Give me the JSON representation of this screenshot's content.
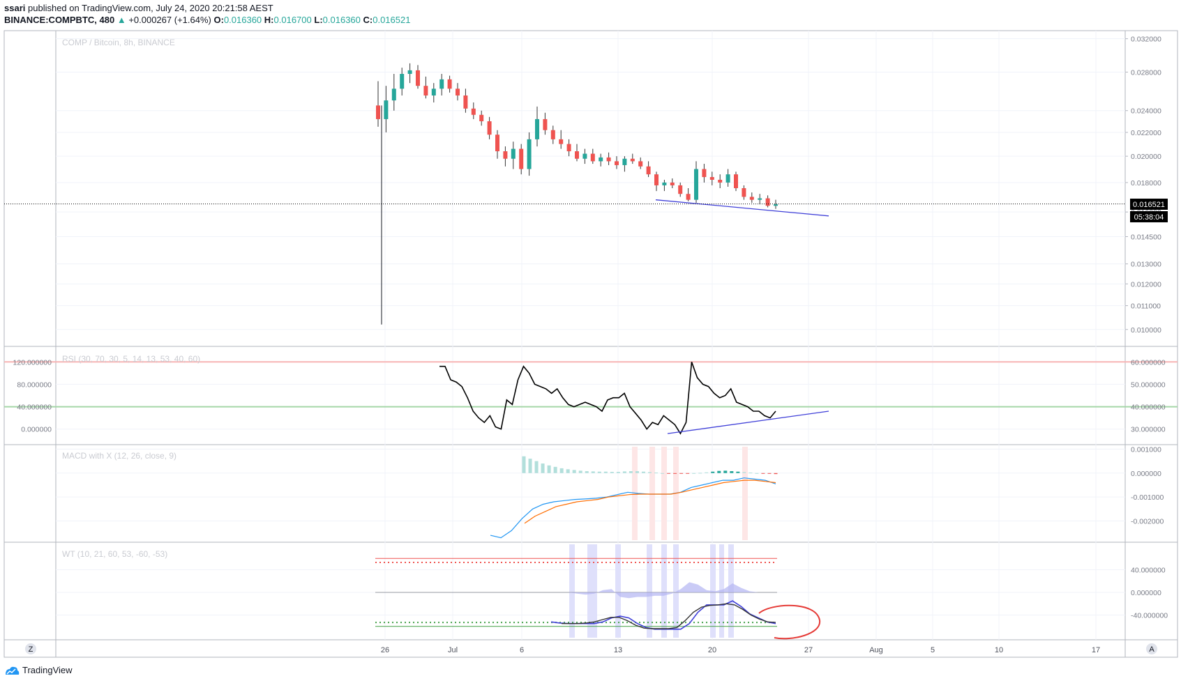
{
  "header": {
    "author": "ssari",
    "published_text": "published on TradingView.com, July 24, 2020 20:21:58 AEST",
    "symbol": "BINANCE:COMPBTC, 480",
    "change": "0.016521",
    "change_delta": "+0.000267 (+1.64%)",
    "o_label": "O:",
    "o_value": "0.016360",
    "h_label": "H:",
    "h_value": "0.016700",
    "l_label": "L:",
    "l_value": "0.016360",
    "c_label": "C:",
    "c_value": "0.016521"
  },
  "footer": {
    "brand": "TradingView"
  },
  "colors": {
    "up": "#26a69a",
    "down": "#ef5350",
    "trend": "#3f3fd8",
    "macd": "#2196f3",
    "signal": "#ff6d00",
    "rsi": "#000000"
  },
  "chart_data": [
    {
      "type": "candlestick",
      "title": "COMP / Bitcoin, 8h, BINANCE",
      "y_ticks": [
        "0.032000",
        "0.028000",
        "0.024000",
        "0.022000",
        "0.020000",
        "0.018000",
        "0.016000",
        "0.014500",
        "0.013000",
        "0.012000",
        "0.011000",
        "0.010000"
      ],
      "last_price": "0.016521",
      "countdown": "05:38:04",
      "scale": "log",
      "candles": [
        [
          0.0245,
          0.027,
          0.0225,
          0.0232
        ],
        [
          0.0232,
          0.0265,
          0.022,
          0.025
        ],
        [
          0.025,
          0.0278,
          0.024,
          0.0262
        ],
        [
          0.0262,
          0.0285,
          0.0255,
          0.0278
        ],
        [
          0.0278,
          0.029,
          0.0268,
          0.0282
        ],
        [
          0.0282,
          0.0288,
          0.0262,
          0.0265
        ],
        [
          0.0265,
          0.0275,
          0.0252,
          0.0255
        ],
        [
          0.0255,
          0.0268,
          0.0248,
          0.0262
        ],
        [
          0.0262,
          0.0278,
          0.0255,
          0.0272
        ],
        [
          0.0272,
          0.0276,
          0.0258,
          0.0262
        ],
        [
          0.0262,
          0.0268,
          0.025,
          0.0255
        ],
        [
          0.0255,
          0.0262,
          0.0238,
          0.0242
        ],
        [
          0.0242,
          0.0248,
          0.0232,
          0.0236
        ],
        [
          0.0236,
          0.024,
          0.0226,
          0.023
        ],
        [
          0.023,
          0.0234,
          0.0214,
          0.0218
        ],
        [
          0.0218,
          0.0222,
          0.0198,
          0.0204
        ],
        [
          0.0204,
          0.0208,
          0.0192,
          0.0198
        ],
        [
          0.0198,
          0.0212,
          0.019,
          0.0206
        ],
        [
          0.0206,
          0.021,
          0.0186,
          0.019
        ],
        [
          0.019,
          0.022,
          0.0185,
          0.0214
        ],
        [
          0.0214,
          0.0244,
          0.0208,
          0.0232
        ],
        [
          0.0232,
          0.0238,
          0.0218,
          0.0222
        ],
        [
          0.0222,
          0.0226,
          0.021,
          0.0214
        ],
        [
          0.0214,
          0.0222,
          0.0206,
          0.021
        ],
        [
          0.021,
          0.0214,
          0.02,
          0.0204
        ],
        [
          0.0204,
          0.021,
          0.0196,
          0.0198
        ],
        [
          0.0198,
          0.0206,
          0.0194,
          0.0202
        ],
        [
          0.0202,
          0.0206,
          0.0194,
          0.0196
        ],
        [
          0.0196,
          0.0202,
          0.0192,
          0.0199
        ],
        [
          0.0199,
          0.0203,
          0.0193,
          0.0196
        ],
        [
          0.0196,
          0.02,
          0.019,
          0.0193
        ],
        [
          0.0193,
          0.02,
          0.0188,
          0.0198
        ],
        [
          0.0198,
          0.0202,
          0.0194,
          0.0196
        ],
        [
          0.0196,
          0.0199,
          0.019,
          0.0192
        ],
        [
          0.0192,
          0.0196,
          0.0184,
          0.0186
        ],
        [
          0.0186,
          0.0188,
          0.0174,
          0.0178
        ],
        [
          0.0178,
          0.0182,
          0.0174,
          0.018
        ],
        [
          0.018,
          0.0183,
          0.0176,
          0.0178
        ],
        [
          0.0178,
          0.018,
          0.017,
          0.0172
        ],
        [
          0.0172,
          0.0176,
          0.0167,
          0.0168
        ],
        [
          0.0168,
          0.0196,
          0.0166,
          0.019
        ],
        [
          0.019,
          0.0194,
          0.018,
          0.0184
        ],
        [
          0.0184,
          0.0188,
          0.0178,
          0.0182
        ],
        [
          0.0182,
          0.0186,
          0.0176,
          0.018
        ],
        [
          0.018,
          0.019,
          0.0177,
          0.0186
        ],
        [
          0.0186,
          0.0188,
          0.0174,
          0.0176
        ],
        [
          0.0176,
          0.0178,
          0.0168,
          0.017
        ],
        [
          0.017,
          0.0173,
          0.0166,
          0.0168
        ],
        [
          0.0168,
          0.0172,
          0.0165,
          0.0169
        ],
        [
          0.0169,
          0.0171,
          0.0163,
          0.0164
        ],
        [
          0.0164,
          0.0168,
          0.0162,
          0.0165
        ]
      ],
      "trendline": [
        [
          0.0168,
          0.01575
        ]
      ]
    },
    {
      "type": "line",
      "title": "RSI (30, 70, 30, 5, 14, 13, 53, 40, 60)",
      "y_ticks": [
        "120.000000",
        "80.000000",
        "40.000000",
        "0.000000"
      ],
      "y_ticks_right": [
        "60.000000",
        "50.000000",
        "40.000000",
        "30.000000"
      ],
      "upper_band": 60,
      "mid_band": 40,
      "values": [
        58,
        58,
        52,
        51,
        49,
        44,
        38,
        35,
        33,
        36,
        31,
        30,
        43,
        41,
        52,
        58,
        55,
        50,
        49,
        48,
        46,
        48,
        44,
        41,
        40,
        41,
        42,
        41,
        40,
        38,
        43,
        44,
        44,
        46,
        40,
        37,
        34,
        30,
        33,
        32,
        36,
        34,
        32,
        28,
        33,
        60,
        53,
        50,
        49,
        46,
        44,
        45,
        48,
        42,
        41,
        40,
        38,
        38,
        36,
        35,
        38
      ],
      "trend_from": 28,
      "trend_to": 38
    },
    {
      "type": "bar+line",
      "title": "MACD with X (12, 26, close, 9)",
      "y_ticks": [
        "0.001000",
        "0.000000",
        "-0.001000",
        "-0.002000"
      ],
      "histogram": [
        0.0007,
        0.0006,
        0.0005,
        0.0004,
        0.00032,
        0.00026,
        0.0002,
        0.00016,
        0.00013,
        0.0001,
        8e-05,
        7e-05,
        6e-05,
        6e-05,
        5e-05,
        5e-05,
        7e-05,
        8e-05,
        8e-05,
        6e-05,
        4e-05,
        2e-05,
        0.0,
        -2e-05,
        -3e-05,
        -2e-05,
        -1e-05,
        0.0,
        1e-05,
        3e-05,
        6e-05,
        9e-05,
        0.0001,
        8e-05,
        6e-05,
        4e-05,
        2e-05,
        0.0,
        -2e-05,
        -3e-05,
        -4e-05
      ],
      "macd": [
        -0.0026,
        -0.0027,
        -0.0024,
        -0.0019,
        -0.0015,
        -0.0013,
        -0.0012,
        -0.00115,
        -0.0011,
        -0.00108,
        -0.00105,
        -0.001,
        -0.0009,
        -0.0008,
        -0.00085,
        -0.00088,
        -0.00088,
        -0.00088,
        -0.0008,
        -0.0006,
        -0.0005,
        -0.0004,
        -0.0003,
        -0.0003,
        -0.0002,
        -0.00025,
        -0.0003,
        -0.00045
      ],
      "signal": [
        -0.0021,
        -0.0018,
        -0.0016,
        -0.0014,
        -0.0013,
        -0.0012,
        -0.00115,
        -0.0011,
        -0.001,
        -0.00095,
        -0.0009,
        -0.00088,
        -0.00088,
        -0.00088,
        -0.00088,
        -0.0008,
        -0.0007,
        -0.0006,
        -0.0005,
        -0.0004,
        -0.00035,
        -0.0003,
        -0.0003,
        -0.00035,
        -0.0004
      ]
    },
    {
      "type": "line",
      "title": "WT (10, 21, 60, 53, -60, -53)",
      "y_ticks": [
        "40.000000",
        "0.000000",
        "-40.000000"
      ],
      "wt1": [
        -52,
        -54,
        -55,
        -55,
        -55,
        -55,
        -52,
        -45,
        -42,
        -45,
        -55,
        -62,
        -65,
        -65,
        -65,
        -65,
        -55,
        -35,
        -22,
        -22,
        -22,
        -15,
        -25,
        -38,
        -45,
        -52,
        -55
      ],
      "wt2": [
        -55,
        -55,
        -55,
        -54,
        -52,
        -48,
        -44,
        -44,
        -50,
        -58,
        -63,
        -64,
        -64,
        -64,
        -62,
        -50,
        -35,
        -26,
        -23,
        -22,
        -20,
        -22,
        -30,
        -40,
        -47,
        -52,
        -53
      ]
    }
  ],
  "x_axis": {
    "labels": [
      "26",
      "Jul",
      "6",
      "13",
      "20",
      "27",
      "Aug",
      "5",
      "10",
      "17"
    ],
    "left_button": "Z",
    "right_button": "A"
  }
}
